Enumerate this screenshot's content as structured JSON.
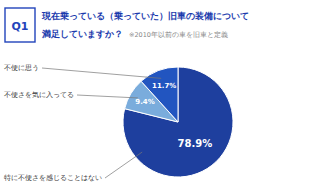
{
  "chart_data": {
    "type": "pie",
    "title": "現在乗っている（乗っていた）旧車の装備について",
    "subtitle": "満足していますか？",
    "annotations": [
      "※2010年以前の車を旧車と定義",
      "Q1"
    ],
    "categories": [
      "特に不便さを感じることはない",
      "不便さを気に入ってる",
      "不便に思う"
    ],
    "values": [
      78.9,
      9.4,
      11.7
    ],
    "value_labels": [
      "78.9%",
      "9.4%",
      "11.7%"
    ],
    "data_labels": true,
    "colors": [
      "#1e3f9e",
      "#7aacdc",
      "#2255c0"
    ]
  }
}
